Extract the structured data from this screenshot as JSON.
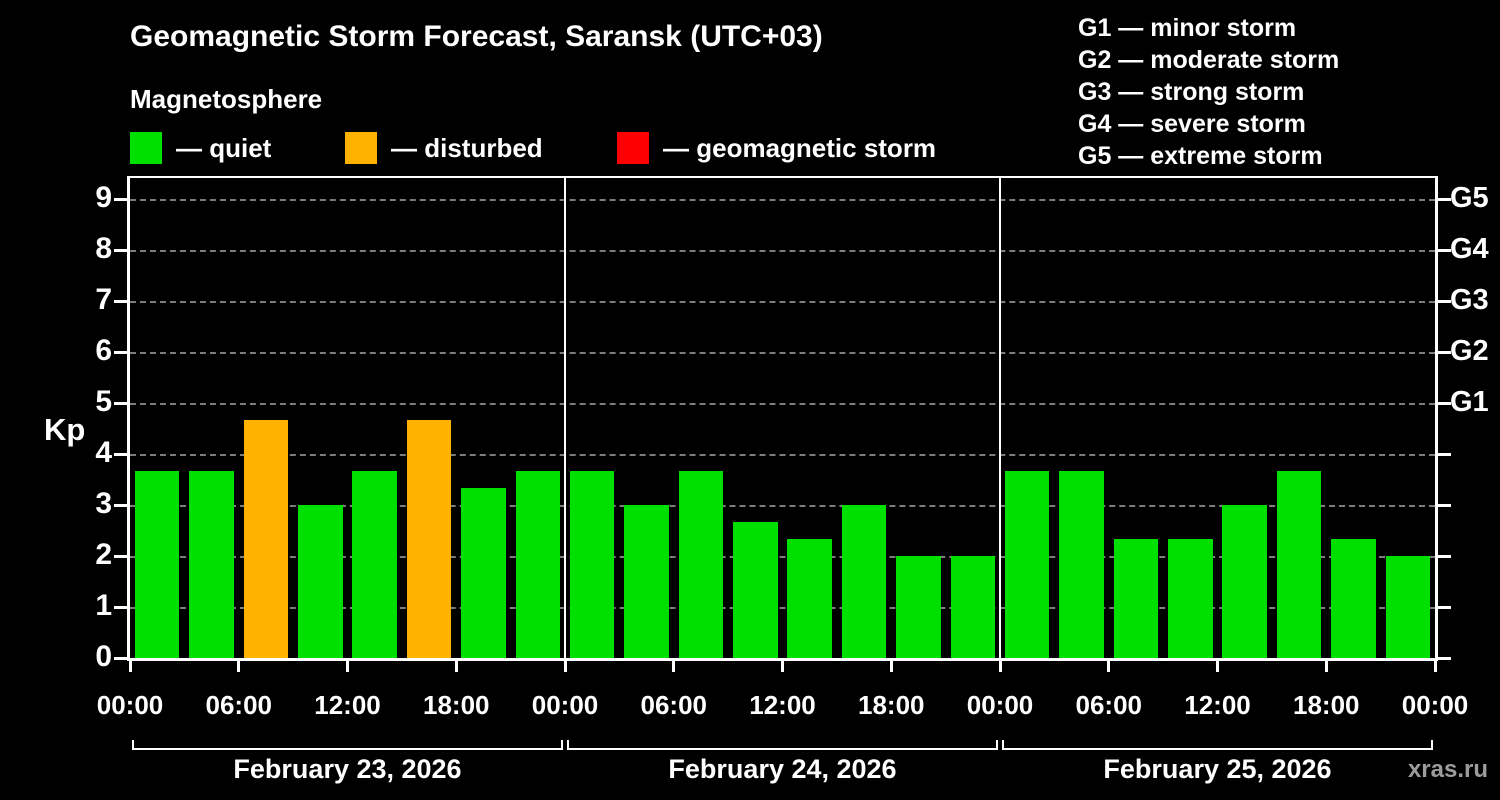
{
  "title": "Geomagnetic Storm Forecast, Saransk (UTC+03)",
  "subtitle": "Magnetosphere",
  "legend": {
    "items": [
      {
        "label": "— quiet",
        "status": "quiet",
        "color": "#00e000"
      },
      {
        "label": "— disturbed",
        "status": "disturbed",
        "color": "#ffb300"
      },
      {
        "label": "— geomagnetic storm",
        "status": "storm",
        "color": "#ff0000"
      }
    ]
  },
  "g_legend": [
    "G1 — minor storm",
    "G2 — moderate storm",
    "G3 — strong storm",
    "G4 — severe storm",
    "G5 — extreme storm"
  ],
  "watermark": "xras.ru",
  "chart_data": {
    "type": "bar",
    "title": "Geomagnetic Storm Forecast, Saransk (UTC+03)",
    "ylabel": "Kp",
    "xlabel": "",
    "ylim": [
      0,
      9.4
    ],
    "yticks": [
      0,
      1,
      2,
      3,
      4,
      5,
      6,
      7,
      8,
      9
    ],
    "grid": "dashed horizontal gray",
    "legend_position": "top",
    "bar_interval_hours": 3,
    "x_tick_labels": [
      "00:00",
      "06:00",
      "12:00",
      "18:00",
      "00:00",
      "06:00",
      "12:00",
      "18:00",
      "00:00",
      "06:00",
      "12:00",
      "18:00",
      "00:00"
    ],
    "right_axis_labels": [
      {
        "kp": 5,
        "label": "G1"
      },
      {
        "kp": 6,
        "label": "G2"
      },
      {
        "kp": 7,
        "label": "G3"
      },
      {
        "kp": 8,
        "label": "G4"
      },
      {
        "kp": 9,
        "label": "G5"
      }
    ],
    "status_colors": {
      "quiet": "#00e000",
      "disturbed": "#ffb300",
      "storm": "#ff0000"
    },
    "days": [
      {
        "date": "February 23, 2026",
        "values": [
          3.67,
          3.67,
          4.67,
          3.0,
          3.67,
          4.67,
          3.33,
          3.67
        ],
        "status": [
          "quiet",
          "quiet",
          "disturbed",
          "quiet",
          "quiet",
          "disturbed",
          "quiet",
          "quiet"
        ]
      },
      {
        "date": "February 24, 2026",
        "values": [
          3.67,
          3.0,
          3.67,
          2.67,
          2.33,
          3.0,
          2.0,
          2.0
        ],
        "status": [
          "quiet",
          "quiet",
          "quiet",
          "quiet",
          "quiet",
          "quiet",
          "quiet",
          "quiet"
        ]
      },
      {
        "date": "February 25, 2026",
        "values": [
          3.67,
          3.67,
          2.33,
          2.33,
          3.0,
          3.67,
          2.33,
          2.0
        ],
        "status": [
          "quiet",
          "quiet",
          "quiet",
          "quiet",
          "quiet",
          "quiet",
          "quiet",
          "quiet"
        ]
      }
    ]
  }
}
